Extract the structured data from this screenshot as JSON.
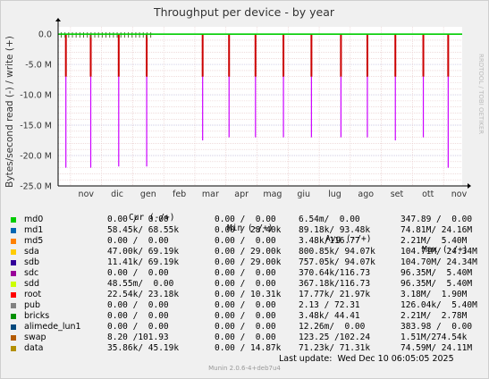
{
  "chart_data": {
    "type": "line",
    "title": "Throughput per device - by year",
    "ylabel": "Bytes/second read (-) / write (+)",
    "side_label": "RRDTOOL / TOBI OETIKER",
    "ylim": [
      -25000000,
      1200000
    ],
    "yticks": [
      {
        "value": 0,
        "label": "0.0"
      },
      {
        "value": -5000000,
        "label": "-5.0 M"
      },
      {
        "value": -10000000,
        "label": "-10.0 M"
      },
      {
        "value": -15000000,
        "label": "-15.0 M"
      },
      {
        "value": -20000000,
        "label": "-20.0 M"
      },
      {
        "value": -25000000,
        "label": "-25.0 M"
      }
    ],
    "months": [
      "nov",
      "dic",
      "gen",
      "feb",
      "mar",
      "apr",
      "mag",
      "giu",
      "lug",
      "ago",
      "set",
      "ott",
      "nov"
    ],
    "spikes": [
      {
        "month_pos": 0.85,
        "value": -22000000,
        "red": -7000000
      },
      {
        "month_pos": 1.65,
        "value": -22000000,
        "red": -7000000
      },
      {
        "month_pos": 2.55,
        "value": -21800000,
        "red": -7000000
      },
      {
        "month_pos": 3.45,
        "value": -21800000,
        "red": -7000000
      },
      {
        "month_pos": 5.25,
        "value": -17500000,
        "red": -7000000
      },
      {
        "month_pos": 6.1,
        "value": -17000000,
        "red": -7000000
      },
      {
        "month_pos": 6.95,
        "value": -17000000,
        "red": -7000000
      },
      {
        "month_pos": 7.85,
        "value": -17000000,
        "red": -7000000
      },
      {
        "month_pos": 8.75,
        "value": -17000000,
        "red": -7000000
      },
      {
        "month_pos": 9.7,
        "value": -17000000,
        "red": -7000000
      },
      {
        "month_pos": 10.55,
        "value": -17000000,
        "red": -7000000
      },
      {
        "month_pos": 11.45,
        "value": -17500000,
        "red": -7000000
      },
      {
        "month_pos": 12.35,
        "value": -17000000,
        "red": -7000000
      },
      {
        "month_pos": 13.15,
        "value": -22000000,
        "red": -7000000
      }
    ],
    "colors": {
      "background": "#ffffff",
      "minor_grid": "#e6c8c8",
      "major_grid": "#c8c8e6",
      "axis": "#000000",
      "write_line": "#00cc00",
      "spike_red": "#cc0000",
      "spike_violet": "#cc00ff"
    }
  },
  "legend": {
    "headers": {
      "cur": "Cur (-/+)",
      "min": "Min (-/+)",
      "avg": "Avg (-/+)",
      "max": "Max (-/+)"
    },
    "rows": [
      {
        "color": "#00cc00",
        "name": "md0",
        "cur": "0.00 /  0.00",
        "min": "0.00 /  0.00",
        "avg": "6.54m/  0.00",
        "max": "347.89 /  0.00"
      },
      {
        "color": "#0066b3",
        "name": "md1",
        "cur": "58.45k/ 68.55k",
        "min": "0.00 / 28.40k",
        "avg": "89.18k/ 93.48k",
        "max": "74.81M/ 24.16M"
      },
      {
        "color": "#ff8000",
        "name": "md5",
        "cur": "0.00 /  0.00",
        "min": "0.00 /  0.00",
        "avg": "3.48k/116.77",
        "max": "2.21M/  5.40M"
      },
      {
        "color": "#ffcc00",
        "name": "sda",
        "cur": "47.00k/ 69.19k",
        "min": "0.00 / 29.00k",
        "avg": "800.85k/ 94.07k",
        "max": "104.71M/ 24.34M"
      },
      {
        "color": "#330099",
        "name": "sdb",
        "cur": "11.41k/ 69.19k",
        "min": "0.00 / 29.00k",
        "avg": "757.05k/ 94.07k",
        "max": "104.70M/ 24.34M"
      },
      {
        "color": "#990099",
        "name": "sdc",
        "cur": "0.00 /  0.00",
        "min": "0.00 /  0.00",
        "avg": "370.64k/116.73",
        "max": "96.35M/  5.40M"
      },
      {
        "color": "#ccff00",
        "name": "sdd",
        "cur": "48.55m/  0.00",
        "min": "0.00 /  0.00",
        "avg": "367.18k/116.73",
        "max": "96.35M/  5.40M"
      },
      {
        "color": "#ff0000",
        "name": "root",
        "cur": "22.54k/ 23.18k",
        "min": "0.00 / 10.31k",
        "avg": "17.77k/ 21.97k",
        "max": "3.18M/  1.90M"
      },
      {
        "color": "#808080",
        "name": "pub",
        "cur": "0.00 /  0.00",
        "min": "0.00 /  0.00",
        "avg": "2.13 / 72.31",
        "max": "126.04k/  5.40M"
      },
      {
        "color": "#008f00",
        "name": "bricks",
        "cur": "0.00 /  0.00",
        "min": "0.00 /  0.00",
        "avg": "3.48k/ 44.41",
        "max": "2.21M/  2.78M"
      },
      {
        "color": "#00487d",
        "name": "alimede_lun1",
        "cur": "0.00 /  0.00",
        "min": "0.00 /  0.00",
        "avg": "12.26m/  0.00",
        "max": "383.98 /  0.00"
      },
      {
        "color": "#b35a00",
        "name": "swap",
        "cur": "8.20 /101.93",
        "min": "0.00 /  0.00",
        "avg": "123.25 /102.24",
        "max": "1.51M/274.54k"
      },
      {
        "color": "#b38f00",
        "name": "data",
        "cur": "35.86k/ 45.19k",
        "min": "0.00 / 14.87k",
        "avg": "71.23k/ 71.31k",
        "max": "74.59M/ 24.11M"
      }
    ],
    "last_update": "Last update:  Wed Dec 10 06:05:05 2025"
  },
  "footer": "Munin 2.0.6-4+deb7u4"
}
